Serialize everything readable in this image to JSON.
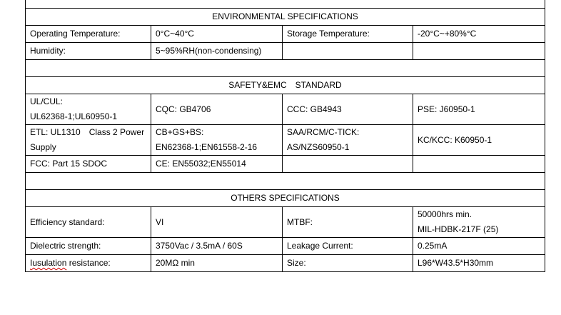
{
  "sections": [
    {
      "type": "spacer",
      "first": true
    },
    {
      "type": "header",
      "text": "ENVIRONMENTAL SPECIFICATIONS"
    },
    {
      "type": "row",
      "height": "h24",
      "cells": [
        [
          "Operating Temperature:"
        ],
        [
          "0°C~40°C"
        ],
        [
          "Storage Temperature:"
        ],
        [
          "-20°C~+80%°C"
        ]
      ]
    },
    {
      "type": "row",
      "height": "h24",
      "cells": [
        [
          "Humidity:"
        ],
        [
          "5~95%RH(non-condensing)"
        ],
        [
          ""
        ],
        [
          ""
        ]
      ]
    },
    {
      "type": "spacer"
    },
    {
      "type": "header",
      "text": "SAFETY&EMC　STANDARD"
    },
    {
      "type": "row",
      "height": "h42",
      "cells": [
        [
          "UL/CUL:",
          "UL62368-1;UL60950-1"
        ],
        [
          "CQC: GB4706"
        ],
        [
          "CCC: GB4943"
        ],
        [
          "PSE: J60950-1"
        ]
      ]
    },
    {
      "type": "row",
      "height": "h42",
      "cells": [
        [
          "ETL: UL1310　Class 2 Power",
          "Supply"
        ],
        [
          "CB+GS+BS:",
          "EN62368-1;EN61558-2-16"
        ],
        [
          "SAA/RCM/C-TICK:",
          "AS/NZS60950-1"
        ],
        [
          "KC/KCC: K60950-1"
        ]
      ]
    },
    {
      "type": "row",
      "height": "h24",
      "cells": [
        [
          "FCC: Part 15 SDOC"
        ],
        [
          "CE: EN55032;EN55014"
        ],
        [
          ""
        ],
        [
          ""
        ]
      ]
    },
    {
      "type": "spacer"
    },
    {
      "type": "header",
      "text": "OTHERS SPECIFICATIONS"
    },
    {
      "type": "row",
      "height": "h42",
      "cells": [
        [
          "Efficiency standard:"
        ],
        [
          "VI"
        ],
        [
          "MTBF:"
        ],
        [
          "50000hrs min.",
          "MIL-HDBK-217F (25)"
        ]
      ]
    },
    {
      "type": "row",
      "height": "h24",
      "cells": [
        [
          "Dielectric strength:"
        ],
        [
          "3750Vac / 3.5mA / 60S"
        ],
        [
          "Leakage Current:"
        ],
        [
          "0.25mA"
        ]
      ]
    },
    {
      "type": "row",
      "height": "h24",
      "cells": [
        [
          "Iusulation resistance:"
        ],
        [
          "20MΩ min"
        ],
        [
          "Size:"
        ],
        [
          "L96*W43.5*H30mm"
        ]
      ]
    }
  ],
  "spellcheck_word": "Iusulation"
}
